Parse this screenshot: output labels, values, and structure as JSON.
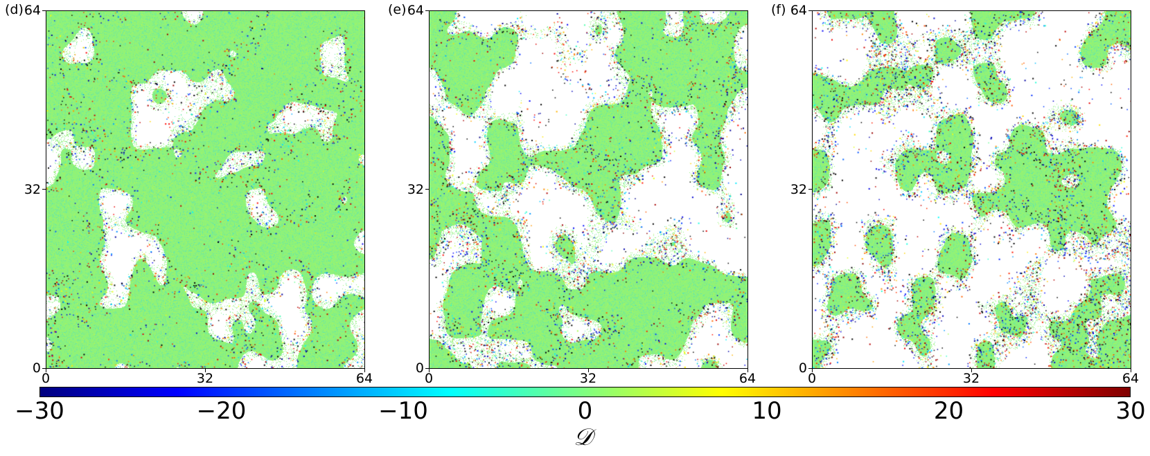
{
  "chart_data": {
    "type": "scatter",
    "panels": [
      {
        "label": "(d)",
        "seed": 11,
        "whiteness": 0.62,
        "intensity": 0.55
      },
      {
        "label": "(e)",
        "seed": 23,
        "whiteness": 0.45,
        "intensity": 0.8
      },
      {
        "label": "(f)",
        "seed": 37,
        "whiteness": 0.28,
        "intensity": 1.1
      }
    ],
    "x_ticks": [
      "0",
      "32",
      "64"
    ],
    "y_ticks": [
      "0",
      "32",
      "64"
    ],
    "xlim": [
      0,
      64
    ],
    "ylim": [
      0,
      64
    ],
    "colorbar": {
      "label": "𝒟",
      "ticks": [
        "−30",
        "−20",
        "−10",
        "0",
        "10",
        "20",
        "30"
      ],
      "range": [
        -30,
        30
      ],
      "colormap": "jet"
    },
    "colors": {
      "background_green": "#8ef27a",
      "void": "#ffffff"
    }
  }
}
